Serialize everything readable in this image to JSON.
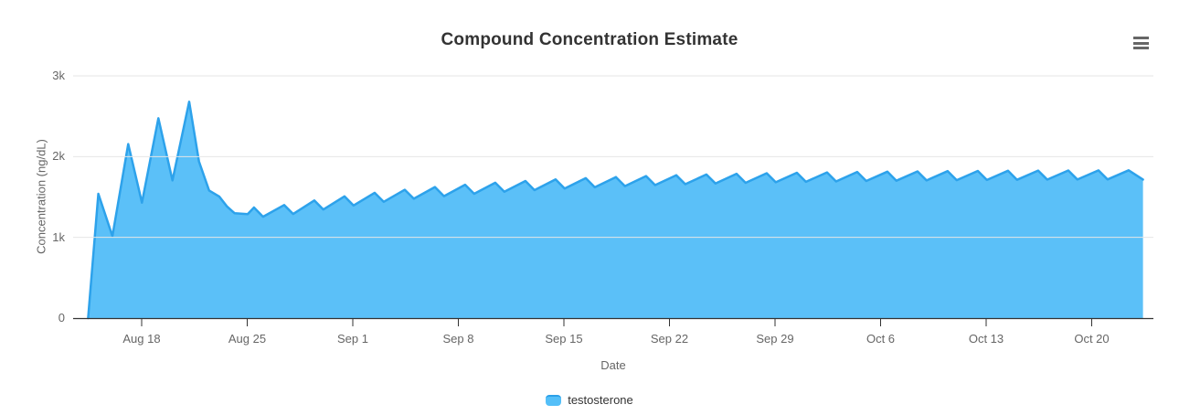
{
  "chart_data": {
    "type": "area",
    "title": "Compound Concentration Estimate",
    "xlabel": "Date",
    "ylabel": "Concentration (ng/dL)",
    "grid": "horizontal",
    "legend_position": "bottom-center",
    "background_color": "#ffffff",
    "grid_color": "#e6e6e6",
    "axis_line_color": "#333333",
    "label_color": "#666666",
    "title_color": "#333333",
    "ylim": [
      0,
      3000
    ],
    "y_ticks": [
      {
        "value": 0,
        "label": "0"
      },
      {
        "value": 1000,
        "label": "1k"
      },
      {
        "value": 2000,
        "label": "2k"
      },
      {
        "value": 3000,
        "label": "3k"
      }
    ],
    "x_axis_type": "time",
    "x_day0_date": "Aug 14",
    "x_range_days": [
      0,
      71
    ],
    "x_ticks": [
      {
        "day": 4,
        "label": "Aug 18"
      },
      {
        "day": 11,
        "label": "Aug 25"
      },
      {
        "day": 18,
        "label": "Sep 1"
      },
      {
        "day": 25,
        "label": "Sep 8"
      },
      {
        "day": 32,
        "label": "Sep 15"
      },
      {
        "day": 39,
        "label": "Sep 22"
      },
      {
        "day": 46,
        "label": "Sep 29"
      },
      {
        "day": 53,
        "label": "Oct 6"
      },
      {
        "day": 60,
        "label": "Oct 13"
      },
      {
        "day": 67,
        "label": "Oct 20"
      }
    ],
    "series": [
      {
        "name": "testosterone",
        "line_color": "#2DA2EB",
        "fill_color": "#5BC0F8",
        "points_day_value": [
          [
            0.45,
            0
          ],
          [
            1.13,
            1540
          ],
          [
            2.06,
            1015
          ],
          [
            3.11,
            2155
          ],
          [
            4.02,
            1430
          ],
          [
            5.11,
            2475
          ],
          [
            6.04,
            1705
          ],
          [
            7.15,
            2680
          ],
          [
            7.8,
            1940
          ],
          [
            8.47,
            1580
          ],
          [
            9.15,
            1505
          ],
          [
            9.65,
            1385
          ],
          [
            10.16,
            1300
          ],
          [
            11.03,
            1288
          ],
          [
            11.45,
            1370
          ],
          [
            12.05,
            1255
          ],
          [
            13.45,
            1400
          ],
          [
            14.05,
            1290
          ],
          [
            15.45,
            1457
          ],
          [
            16.05,
            1345
          ],
          [
            17.45,
            1508
          ],
          [
            18.05,
            1395
          ],
          [
            19.45,
            1552
          ],
          [
            20.05,
            1440
          ],
          [
            21.45,
            1590
          ],
          [
            22.05,
            1478
          ],
          [
            23.45,
            1623
          ],
          [
            24.05,
            1510
          ],
          [
            25.45,
            1652
          ],
          [
            26.05,
            1540
          ],
          [
            27.45,
            1677
          ],
          [
            28.05,
            1565
          ],
          [
            29.45,
            1698
          ],
          [
            30.05,
            1585
          ],
          [
            31.45,
            1717
          ],
          [
            32.05,
            1605
          ],
          [
            33.45,
            1733
          ],
          [
            34.05,
            1620
          ],
          [
            35.45,
            1747
          ],
          [
            36.05,
            1635
          ],
          [
            37.45,
            1759
          ],
          [
            38.05,
            1647
          ],
          [
            39.45,
            1770
          ],
          [
            40.05,
            1658
          ],
          [
            41.45,
            1779
          ],
          [
            42.05,
            1667
          ],
          [
            43.45,
            1787
          ],
          [
            44.05,
            1675
          ],
          [
            45.45,
            1794
          ],
          [
            46.05,
            1682
          ],
          [
            47.45,
            1800
          ],
          [
            48.05,
            1688
          ],
          [
            49.45,
            1805
          ],
          [
            50.05,
            1693
          ],
          [
            51.45,
            1810
          ],
          [
            52.05,
            1698
          ],
          [
            53.45,
            1814
          ],
          [
            54.05,
            1702
          ],
          [
            55.45,
            1817
          ],
          [
            56.05,
            1705
          ],
          [
            57.45,
            1820
          ],
          [
            58.05,
            1708
          ],
          [
            59.45,
            1823
          ],
          [
            60.05,
            1711
          ],
          [
            61.45,
            1825
          ],
          [
            62.05,
            1713
          ],
          [
            63.45,
            1827
          ],
          [
            64.05,
            1715
          ],
          [
            65.45,
            1828
          ],
          [
            66.05,
            1716
          ],
          [
            67.45,
            1829
          ],
          [
            68.05,
            1717
          ],
          [
            69.45,
            1831
          ],
          [
            70.4,
            1716
          ]
        ]
      }
    ]
  },
  "icons": {
    "context_menu": "hamburger-icon"
  },
  "legend": {
    "items": [
      {
        "label": "testosterone",
        "color": "#54BFF8"
      }
    ]
  }
}
